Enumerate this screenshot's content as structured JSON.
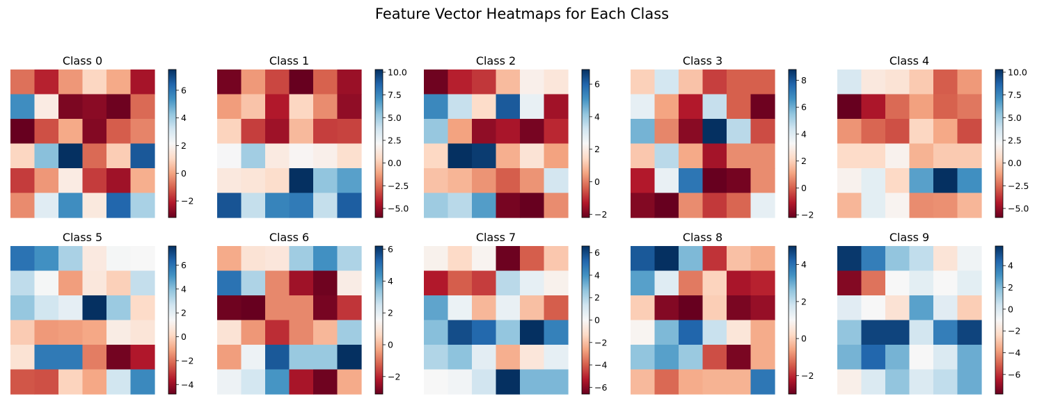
{
  "title": "Feature Vector Heatmaps for Each Class",
  "colormap": {
    "name": "RdBu",
    "stops": [
      "#67001f",
      "#b2182b",
      "#d6604d",
      "#f4a582",
      "#fddbc7",
      "#f7f7f7",
      "#d1e5f0",
      "#92c5de",
      "#4393c3",
      "#2166ac",
      "#053061"
    ]
  },
  "chart_data": [
    {
      "type": "heatmap",
      "title": "Class 0",
      "vmin": -3.2,
      "vmax": 7.5,
      "colorbar_ticks": [
        -2,
        0,
        2,
        4,
        6
      ],
      "colorbar_labels": [
        "−2",
        "0",
        "2",
        "4",
        "6"
      ],
      "values": [
        [
          -0.8,
          -2.0,
          -0.2,
          1.0,
          0.1,
          -2.3
        ],
        [
          5.5,
          1.7,
          -2.9,
          -2.7,
          -3.1,
          -0.9
        ],
        [
          -3.2,
          -1.3,
          0.1,
          -2.8,
          -1.1,
          -0.5
        ],
        [
          1.0,
          4.4,
          7.5,
          -0.9,
          0.8,
          6.7
        ],
        [
          -1.6,
          -0.2,
          1.7,
          -1.6,
          -2.4,
          0.2
        ],
        [
          -0.4,
          2.8,
          5.5,
          1.6,
          6.4,
          3.9
        ]
      ]
    },
    {
      "type": "heatmap",
      "title": "Class 1",
      "vmin": -6.0,
      "vmax": 10.3,
      "colorbar_ticks": [
        -5,
        -2.5,
        0,
        2.5,
        5,
        7.5,
        10
      ],
      "colorbar_labels": [
        "−5.0",
        "−2.5",
        "0.0",
        "2.5",
        "5.0",
        "7.5",
        "10.0"
      ],
      "values": [
        [
          -5.7,
          -1.4,
          -3.3,
          -6.0,
          -2.7,
          -4.9
        ],
        [
          -1.3,
          -0.2,
          -4.4,
          0.4,
          -1.7,
          -5.1
        ],
        [
          0.3,
          -3.5,
          -4.8,
          -0.5,
          -3.5,
          -3.4
        ],
        [
          2.2,
          5.0,
          1.4,
          2.0,
          1.7,
          0.8
        ],
        [
          1.3,
          1.1,
          0.7,
          10.3,
          5.4,
          6.6
        ],
        [
          9.2,
          4.1,
          7.6,
          7.9,
          4.1,
          8.9
        ]
      ]
    },
    {
      "type": "heatmap",
      "title": "Class 2",
      "vmin": -2.2,
      "vmax": 6.9,
      "colorbar_ticks": [
        -2,
        0,
        2,
        4,
        6
      ],
      "colorbar_labels": [
        "−2",
        "0",
        "2",
        "4",
        "6"
      ],
      "values": [
        [
          -2.1,
          -1.2,
          -0.9,
          0.9,
          2.1,
          1.8
        ],
        [
          5.3,
          3.4,
          1.5,
          6.2,
          2.7,
          -1.5
        ],
        [
          4.1,
          0.5,
          -1.7,
          -1.4,
          -2.0,
          -1.1
        ],
        [
          1.4,
          6.9,
          6.7,
          0.7,
          1.7,
          0.5
        ],
        [
          1.0,
          0.8,
          0.3,
          -0.4,
          0.3,
          3.2
        ],
        [
          4.0,
          3.6,
          4.9,
          -2.0,
          -2.2,
          0.2
        ]
      ]
    },
    {
      "type": "heatmap",
      "title": "Class 3",
      "vmin": -2.2,
      "vmax": 8.8,
      "colorbar_ticks": [
        -2,
        0,
        2,
        4,
        6,
        8
      ],
      "colorbar_labels": [
        "−2",
        "0",
        "2",
        "4",
        "6",
        "8"
      ],
      "values": [
        [
          2.0,
          4.3,
          1.7,
          -0.5,
          0.0,
          0.0
        ],
        [
          3.8,
          1.1,
          -1.1,
          4.6,
          0.0,
          -2.1
        ],
        [
          5.9,
          0.6,
          -1.7,
          8.8,
          4.8,
          -0.3
        ],
        [
          1.8,
          4.8,
          1.2,
          -1.3,
          0.7,
          0.7
        ],
        [
          -1.1,
          3.7,
          7.3,
          -2.2,
          -2.0,
          0.7
        ],
        [
          -1.8,
          -2.2,
          0.7,
          -0.6,
          0.1,
          3.8
        ]
      ]
    },
    {
      "type": "heatmap",
      "title": "Class 4",
      "vmin": -6.0,
      "vmax": 10.3,
      "colorbar_ticks": [
        -5,
        -2.5,
        0,
        2.5,
        5,
        7.5,
        10
      ],
      "colorbar_labels": [
        "−5.0",
        "−2.5",
        "0.0",
        "2.5",
        "5.0",
        "7.5",
        "10.0"
      ],
      "values": [
        [
          3.5,
          1.3,
          1.0,
          0.0,
          -2.8,
          -1.4
        ],
        [
          -6.0,
          -4.5,
          -2.5,
          -1.2,
          -2.7,
          -2.2
        ],
        [
          -1.5,
          -2.6,
          -3.1,
          0.4,
          -1.0,
          -3.2
        ],
        [
          0.6,
          0.6,
          1.8,
          -0.7,
          0.0,
          0.0
        ],
        [
          1.8,
          3.0,
          0.5,
          6.6,
          10.3,
          7.2
        ],
        [
          -0.6,
          3.0,
          1.9,
          -1.7,
          -1.6,
          -0.6
        ]
      ]
    },
    {
      "type": "heatmap",
      "title": "Class 5",
      "vmin": -4.8,
      "vmax": 7.6,
      "colorbar_ticks": [
        -4,
        -2,
        0,
        2,
        4,
        6
      ],
      "colorbar_labels": [
        "−4",
        "−2",
        "0",
        "2",
        "4",
        "6"
      ],
      "values": [
        [
          6.0,
          5.2,
          3.4,
          0.8,
          1.5,
          1.4
        ],
        [
          3.0,
          1.5,
          -1.2,
          0.7,
          -0.1,
          2.9
        ],
        [
          3.8,
          2.6,
          2.0,
          7.6,
          3.7,
          0.2
        ],
        [
          -0.2,
          -1.3,
          -1.2,
          -1.0,
          0.9,
          0.6
        ],
        [
          0.5,
          5.8,
          5.8,
          -1.8,
          -4.6,
          -3.6
        ],
        [
          -2.5,
          -2.6,
          0.0,
          -1.0,
          2.6,
          5.4
        ]
      ]
    },
    {
      "type": "heatmap",
      "title": "Class 6",
      "vmin": -3.1,
      "vmax": 6.2,
      "colorbar_ticks": [
        -2,
        0,
        2,
        4,
        6
      ],
      "colorbar_labels": [
        "−2",
        "0",
        "2",
        "4",
        "6"
      ],
      "values": [
        [
          -0.2,
          0.9,
          1.0,
          3.2,
          4.4,
          3.0
        ],
        [
          5.0,
          3.0,
          -0.7,
          -2.4,
          -3.0,
          1.2
        ],
        [
          -3.0,
          -3.1,
          -0.7,
          -0.7,
          -2.9,
          -1.8
        ],
        [
          0.9,
          -0.5,
          -1.9,
          -0.7,
          0.0,
          3.2
        ],
        [
          -0.4,
          1.8,
          5.5,
          3.3,
          3.3,
          6.2
        ],
        [
          1.8,
          2.4,
          4.3,
          -2.3,
          -3.0,
          -0.2
        ]
      ]
    },
    {
      "type": "heatmap",
      "title": "Class 7",
      "vmin": -6.6,
      "vmax": 6.6,
      "colorbar_ticks": [
        -6,
        -4,
        -2,
        0,
        2,
        4,
        6
      ],
      "colorbar_labels": [
        "−6",
        "−4",
        "−2",
        "0",
        "2",
        "4",
        "6"
      ],
      "values": [
        [
          -0.3,
          -1.3,
          -0.2,
          -6.5,
          -4.0,
          -1.8
        ],
        [
          -5.3,
          -4.0,
          -4.6,
          1.8,
          0.6,
          -0.3
        ],
        [
          3.5,
          0.4,
          -2.2,
          0.5,
          -2.0,
          -4.0
        ],
        [
          2.8,
          5.9,
          5.2,
          2.6,
          6.6,
          4.5
        ],
        [
          2.0,
          2.7,
          0.7,
          -2.4,
          -0.8,
          0.6
        ],
        [
          0.0,
          0.2,
          1.3,
          6.6,
          3.0,
          3.0
        ]
      ]
    },
    {
      "type": "heatmap",
      "title": "Class 8",
      "vmin": -3.0,
      "vmax": 5.0,
      "colorbar_ticks": [
        -2,
        0,
        2,
        4
      ],
      "colorbar_labels": [
        "−2",
        "0",
        "2",
        "4"
      ],
      "values": [
        [
          4.4,
          5.0,
          2.8,
          -1.9,
          -0.2,
          -0.5
        ],
        [
          3.2,
          1.5,
          -1.1,
          0.1,
          -2.3,
          -2.1
        ],
        [
          0.0,
          -2.7,
          -3.0,
          0.0,
          -2.8,
          -2.5
        ],
        [
          0.9,
          2.8,
          4.2,
          1.9,
          0.5,
          -0.5
        ],
        [
          2.6,
          3.2,
          2.5,
          -1.6,
          -2.8,
          -0.5
        ],
        [
          -0.3,
          -1.3,
          -0.5,
          -0.4,
          -0.4,
          3.9
        ]
      ]
    },
    {
      "type": "heatmap",
      "title": "Class 9",
      "vmin": -7.8,
      "vmax": 5.8,
      "colorbar_ticks": [
        -6,
        -4,
        -2,
        0,
        2,
        4
      ],
      "colorbar_labels": [
        "−6",
        "−4",
        "−2",
        "0",
        "2",
        "4"
      ],
      "values": [
        [
          5.6,
          3.7,
          1.7,
          0.7,
          -1.9,
          -0.7
        ],
        [
          -7.3,
          -4.7,
          -1.0,
          -0.3,
          -1.0,
          -0.3
        ],
        [
          -0.2,
          -1.0,
          -2.0,
          2.7,
          -0.2,
          -2.7
        ],
        [
          1.7,
          5.3,
          5.3,
          0.3,
          3.7,
          5.3
        ],
        [
          2.2,
          4.4,
          2.2,
          -1.0,
          0.0,
          2.4
        ],
        [
          -1.4,
          0.0,
          1.7,
          0.0,
          0.7,
          2.4
        ]
      ]
    }
  ]
}
